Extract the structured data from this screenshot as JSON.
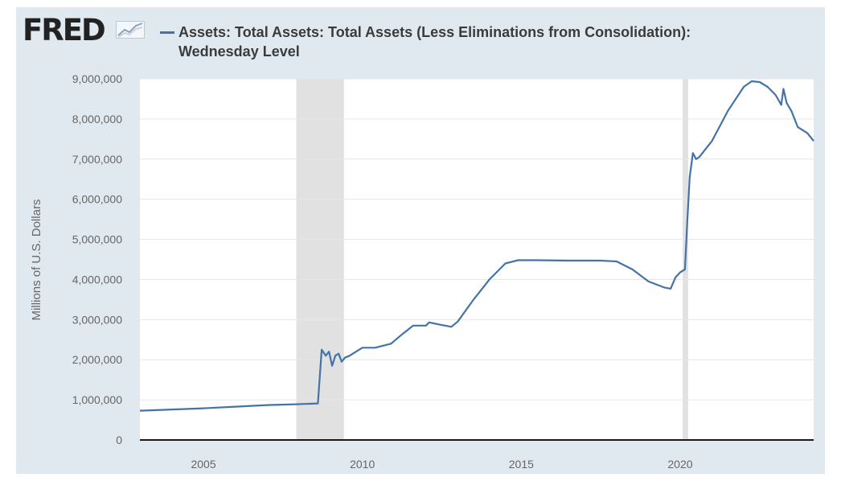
{
  "header": {
    "logo_text": "FRED",
    "logo_icon": "fred-chart-mark-icon"
  },
  "chart_data": {
    "type": "line",
    "title_line1": "Assets: Total Assets: Total Assets (Less Eliminations from Consolidation):",
    "title_line2": "Wednesday Level",
    "ylabel": "Millions of U.S. Dollars",
    "xlabel": "",
    "xlim": [
      2003.0,
      2024.2
    ],
    "ylim": [
      0,
      9000000
    ],
    "yticks": [
      0,
      1000000,
      2000000,
      3000000,
      4000000,
      5000000,
      6000000,
      7000000,
      8000000,
      9000000
    ],
    "ytick_labels": [
      "0",
      "1,000,000",
      "2,000,000",
      "3,000,000",
      "4,000,000",
      "5,000,000",
      "6,000,000",
      "7,000,000",
      "8,000,000",
      "9,000,000"
    ],
    "xticks": [
      2005,
      2010,
      2015,
      2020
    ],
    "xtick_labels": [
      "2005",
      "2010",
      "2015",
      "2020"
    ],
    "grid": "horizontal",
    "recessions": [
      {
        "start": 2007.92,
        "end": 2009.42
      },
      {
        "start": 2020.08,
        "end": 2020.25
      }
    ],
    "colors": {
      "line": "#4572a7",
      "recession": "#e1e1e1",
      "frame": "#e1e9f0",
      "grid": "#e6e6e6"
    },
    "series": [
      {
        "x": [
          2003.0,
          2004.0,
          2005.0,
          2006.0,
          2007.0,
          2007.9,
          2008.6,
          2008.72,
          2008.85,
          2008.95,
          2009.05,
          2009.15,
          2009.25,
          2009.35,
          2009.45,
          2009.6,
          2009.8,
          2010.0,
          2010.4,
          2010.9,
          2011.2,
          2011.6,
          2012.0,
          2012.1,
          2012.4,
          2012.8,
          2013.0,
          2013.5,
          2014.0,
          2014.5,
          2014.9,
          2015.5,
          2016.5,
          2017.5,
          2018.0,
          2018.5,
          2019.0,
          2019.5,
          2019.7,
          2019.85,
          2020.0,
          2020.15,
          2020.22,
          2020.3,
          2020.4,
          2020.5,
          2020.6,
          2020.8,
          2021.0,
          2021.5,
          2022.0,
          2022.25,
          2022.5,
          2022.75,
          2023.0,
          2023.18,
          2023.25,
          2023.35,
          2023.5,
          2023.7,
          2024.0,
          2024.2
        ],
        "values": [
          730000,
          760000,
          790000,
          830000,
          870000,
          890000,
          910000,
          2250000,
          2100000,
          2200000,
          1850000,
          2100000,
          2150000,
          1950000,
          2050000,
          2100000,
          2200000,
          2300000,
          2300000,
          2400000,
          2600000,
          2850000,
          2850000,
          2930000,
          2880000,
          2820000,
          2950000,
          3500000,
          4000000,
          4400000,
          4480000,
          4480000,
          4470000,
          4470000,
          4450000,
          4250000,
          3950000,
          3800000,
          3770000,
          4050000,
          4180000,
          4250000,
          5400000,
          6550000,
          7150000,
          7000000,
          7050000,
          7250000,
          7450000,
          8200000,
          8800000,
          8940000,
          8920000,
          8800000,
          8600000,
          8350000,
          8750000,
          8400000,
          8200000,
          7800000,
          7650000,
          7450000
        ]
      }
    ]
  }
}
